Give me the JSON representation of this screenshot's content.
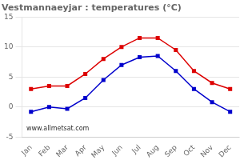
{
  "chart_data": {
    "type": "line",
    "title": "Vestmannaeyjar : temperatures (°C)",
    "categories": [
      "Jan",
      "Feb",
      "Mar",
      "Apr",
      "May",
      "Jun",
      "Jul",
      "Aug",
      "Sep",
      "Oct",
      "Nov",
      "Dec"
    ],
    "series": [
      {
        "color": "#dd0000",
        "marker": "square",
        "values": [
          3.0,
          3.5,
          3.5,
          5.5,
          8.0,
          10.0,
          11.5,
          11.5,
          9.5,
          6.0,
          4.0,
          3.0
        ]
      },
      {
        "color": "#0000cc",
        "marker": "square",
        "values": [
          -0.8,
          0.0,
          -0.3,
          1.5,
          4.5,
          7.0,
          8.3,
          8.5,
          6.0,
          3.0,
          0.8,
          -0.8
        ]
      }
    ],
    "ylim": [
      -5,
      15
    ],
    "yticks": [
      -5,
      0,
      5,
      10,
      15
    ],
    "grid": true,
    "annotations": [
      "www.allmetsat.com"
    ]
  }
}
